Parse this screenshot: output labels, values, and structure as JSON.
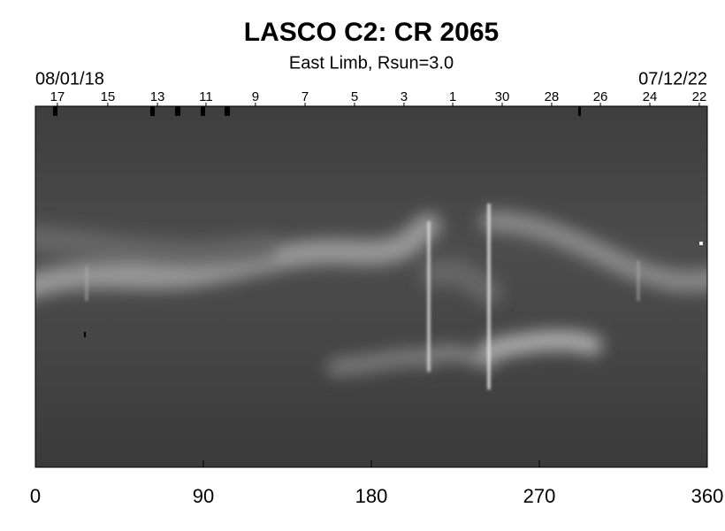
{
  "chart_data": {
    "type": "image",
    "title": "LASCO C2: CR 2065",
    "subtitle": "East Limb, Rsun=3.0",
    "date_start": "08/01/18",
    "date_end": "07/12/22",
    "xlim": [
      0,
      360
    ],
    "xticks": [
      0,
      90,
      180,
      270,
      360
    ],
    "day_ticks": [
      {
        "value": 11.8,
        "label": "17"
      },
      {
        "value": 38.8,
        "label": "15"
      },
      {
        "value": 65.4,
        "label": "13"
      },
      {
        "value": 91.4,
        "label": "11"
      },
      {
        "value": 117.9,
        "label": "9"
      },
      {
        "value": 144.5,
        "label": "7"
      },
      {
        "value": 171.0,
        "label": "5"
      },
      {
        "value": 197.5,
        "label": "3"
      },
      {
        "value": 223.6,
        "label": "1"
      },
      {
        "value": 250.1,
        "label": "30"
      },
      {
        "value": 276.6,
        "label": "28"
      },
      {
        "value": 302.7,
        "label": "26"
      },
      {
        "value": 329.2,
        "label": "24"
      },
      {
        "value": 355.7,
        "label": "22"
      }
    ]
  }
}
